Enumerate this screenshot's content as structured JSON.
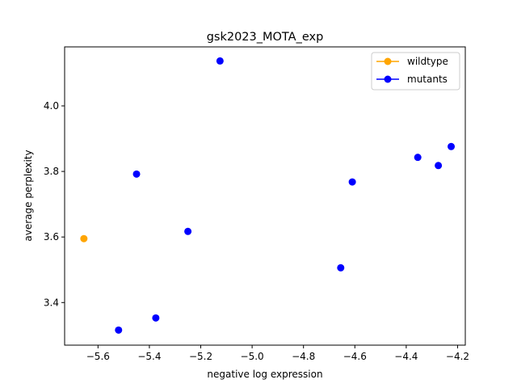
{
  "chart_data": {
    "type": "scatter",
    "title": "gsk2023_MOTA_exp",
    "xlabel": "negative log expression",
    "ylabel": "average perplexity",
    "xlim": [
      -5.73,
      -4.17
    ],
    "ylim": [
      3.27,
      4.18
    ],
    "xticks": [
      -5.6,
      -5.4,
      -5.2,
      -5.0,
      -4.8,
      -4.6,
      -4.4,
      -4.2
    ],
    "xtick_labels": [
      "−5.6",
      "−5.4",
      "−5.2",
      "−5.0",
      "−4.8",
      "−4.6",
      "−4.4",
      "−4.2"
    ],
    "yticks": [
      3.4,
      3.6,
      3.8,
      4.0
    ],
    "ytick_labels": [
      "3.4",
      "3.6",
      "3.8",
      "4.0"
    ],
    "grid": false,
    "legend_position": "top-right",
    "series": [
      {
        "name": "wildtype",
        "color": "#ffa500",
        "points": [
          {
            "x": -5.655,
            "y": 3.595
          }
        ]
      },
      {
        "name": "mutants",
        "color": "#0000ff",
        "points": [
          {
            "x": -5.125,
            "y": 4.137
          },
          {
            "x": -5.45,
            "y": 3.792
          },
          {
            "x": -5.25,
            "y": 3.617
          },
          {
            "x": -5.52,
            "y": 3.316
          },
          {
            "x": -5.375,
            "y": 3.353
          },
          {
            "x": -4.655,
            "y": 3.506
          },
          {
            "x": -4.61,
            "y": 3.768
          },
          {
            "x": -4.355,
            "y": 3.843
          },
          {
            "x": -4.275,
            "y": 3.818
          },
          {
            "x": -4.225,
            "y": 3.876
          }
        ]
      }
    ]
  }
}
